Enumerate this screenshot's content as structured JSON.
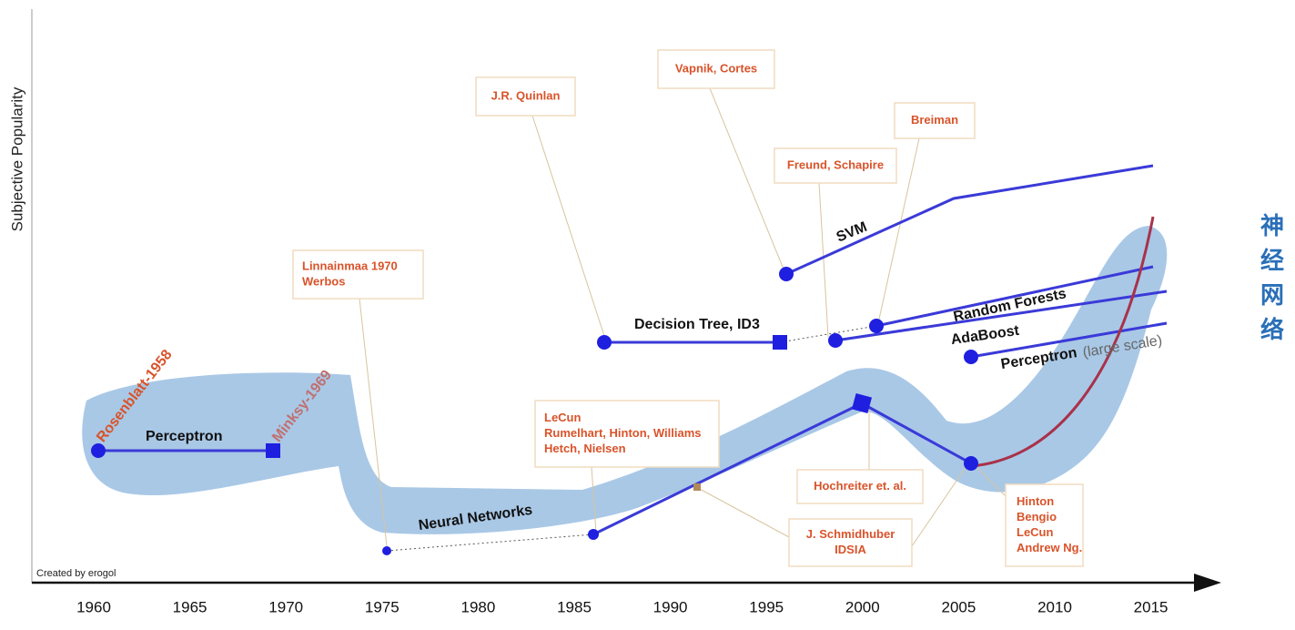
{
  "y_axis_label": "Subjective Popularity",
  "x_ticks": [
    "1960",
    "1965",
    "1970",
    "1975",
    "1980",
    "1985",
    "1990",
    "1995",
    "2000",
    "2005",
    "2010",
    "2015"
  ],
  "credit": "Created by erogol",
  "side_label": [
    "神",
    "经",
    "网",
    "络"
  ],
  "names": {
    "rosenblatt": "Rosenblatt-1958",
    "minsky": "Minksy-1969"
  },
  "line_labels": {
    "perceptron": "Perceptron",
    "neural_networks": "Neural Networks",
    "decision_tree": "Decision Tree, ID3",
    "svm": "SVM",
    "random_forests": "Random Forests",
    "adaboost": "AdaBoost",
    "perceptron_large": "Perceptron",
    "large_scale": "(large scale)"
  },
  "notes": {
    "linnainmaa": [
      "Linnainmaa 1970",
      "Werbos"
    ],
    "quinlan": [
      "J.R. Quinlan"
    ],
    "vapnik": [
      "Vapnik, Cortes"
    ],
    "breiman": [
      "Breiman"
    ],
    "freund": [
      "Freund, Schapire"
    ],
    "lecun": [
      "LeCun",
      "Rumelhart, Hinton, Williams",
      "Hetch, Nielsen"
    ],
    "hochreiter": [
      "Hochreiter et. al."
    ],
    "schmidhuber": [
      "J. Schmidhuber",
      "IDSIA"
    ],
    "hinton": [
      "Hinton",
      "Bengio",
      "LeCun",
      "Andrew Ng."
    ]
  }
}
